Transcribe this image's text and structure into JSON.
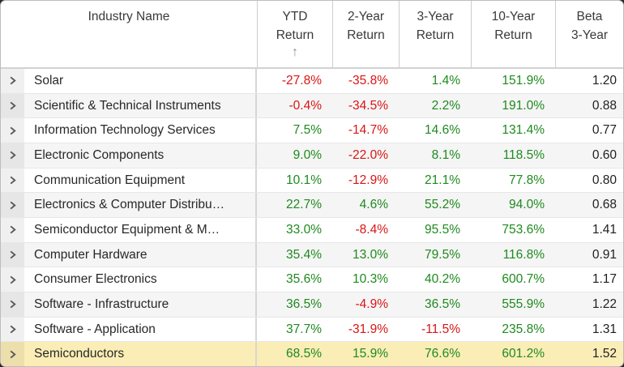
{
  "table": {
    "sort_arrow": "↑",
    "colors": {
      "positive": "#1e8a1e",
      "negative": "#d91515",
      "neutral": "#1f1f1f",
      "highlight_row": "#fbedb6"
    },
    "columns": [
      {
        "id": "industry",
        "lines": [
          "Industry Name"
        ]
      },
      {
        "id": "ytd",
        "lines": [
          "YTD",
          "Return"
        ],
        "sorted": "ascending"
      },
      {
        "id": "y2",
        "lines": [
          "2-Year",
          "Return"
        ]
      },
      {
        "id": "y3",
        "lines": [
          "3-Year",
          "Return"
        ]
      },
      {
        "id": "y10",
        "lines": [
          "10-Year",
          "Return"
        ]
      },
      {
        "id": "beta",
        "lines": [
          "Beta",
          "3-Year"
        ]
      }
    ],
    "rows": [
      {
        "name": "Solar",
        "ytd": "-27.8%",
        "y2": "-35.8%",
        "y3": "1.4%",
        "y10": "151.9%",
        "beta": "1.20"
      },
      {
        "name": "Scientific & Technical Instruments",
        "ytd": "-0.4%",
        "y2": "-34.5%",
        "y3": "2.2%",
        "y10": "191.0%",
        "beta": "0.88"
      },
      {
        "name": "Information Technology Services",
        "ytd": "7.5%",
        "y2": "-14.7%",
        "y3": "14.6%",
        "y10": "131.4%",
        "beta": "0.77"
      },
      {
        "name": "Electronic Components",
        "ytd": "9.0%",
        "y2": "-22.0%",
        "y3": "8.1%",
        "y10": "118.5%",
        "beta": "0.60"
      },
      {
        "name": "Communication Equipment",
        "ytd": "10.1%",
        "y2": "-12.9%",
        "y3": "21.1%",
        "y10": "77.8%",
        "beta": "0.80"
      },
      {
        "name": "Electronics & Computer Distribu…",
        "ytd": "22.7%",
        "y2": "4.6%",
        "y3": "55.2%",
        "y10": "94.0%",
        "beta": "0.68"
      },
      {
        "name": "Semiconductor Equipment & M…",
        "ytd": "33.0%",
        "y2": "-8.4%",
        "y3": "95.5%",
        "y10": "753.6%",
        "beta": "1.41"
      },
      {
        "name": "Computer Hardware",
        "ytd": "35.4%",
        "y2": "13.0%",
        "y3": "79.5%",
        "y10": "116.8%",
        "beta": "0.91"
      },
      {
        "name": "Consumer Electronics",
        "ytd": "35.6%",
        "y2": "10.3%",
        "y3": "40.2%",
        "y10": "600.7%",
        "beta": "1.17"
      },
      {
        "name": "Software - Infrastructure",
        "ytd": "36.5%",
        "y2": "-4.9%",
        "y3": "36.5%",
        "y10": "555.9%",
        "beta": "1.22"
      },
      {
        "name": "Software - Application",
        "ytd": "37.7%",
        "y2": "-31.9%",
        "y3": "-11.5%",
        "y10": "235.8%",
        "beta": "1.31"
      },
      {
        "name": "Semiconductors",
        "ytd": "68.5%",
        "y2": "15.9%",
        "y3": "76.6%",
        "y10": "601.2%",
        "beta": "1.52",
        "highlighted": true
      }
    ]
  }
}
